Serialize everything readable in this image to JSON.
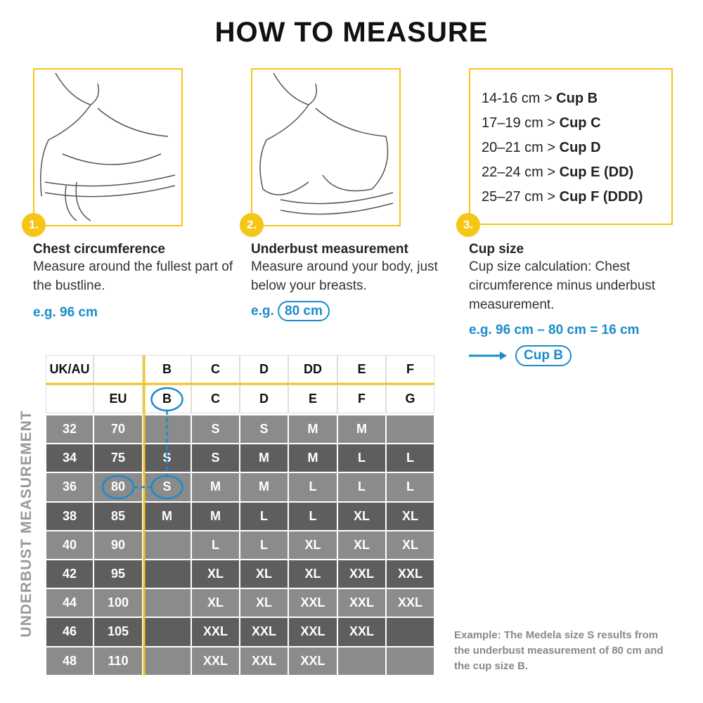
{
  "title": "HOW TO MEASURE",
  "steps": [
    {
      "number": "1.",
      "title": "Chest circumference",
      "description": "Measure around the fullest part of the bustline.",
      "example": "e.g. 96 cm"
    },
    {
      "number": "2.",
      "title": "Underbust measurement",
      "description": "Measure around your body, just below your breasts.",
      "example_prefix": "e.g.",
      "example_value": "80 cm"
    },
    {
      "number": "3.",
      "title": "Cup size",
      "description": "Cup size calculation: Chest circumference minus underbust measurement.",
      "example": "e.g. 96 cm – 80 cm = 16 cm",
      "result": "Cup B"
    }
  ],
  "cup_list": [
    {
      "range": "14-16 cm >",
      "cup": "Cup B"
    },
    {
      "range": "17–19 cm >",
      "cup": "Cup C"
    },
    {
      "range": "20–21 cm >",
      "cup": "Cup D"
    },
    {
      "range": "22–24 cm >",
      "cup": "Cup E (DD)"
    },
    {
      "range": "25–27 cm >",
      "cup": "Cup F (DDD)"
    }
  ],
  "table": {
    "side_label": "UNDERBUST MEASUREMENT",
    "header_uk": [
      "UK/AU",
      null,
      "B",
      "C",
      "D",
      "DD",
      "E",
      "F"
    ],
    "header_eu": [
      null,
      "EU",
      "B",
      "C",
      "D",
      "E",
      "F",
      "G"
    ],
    "rows": [
      [
        32,
        70,
        null,
        "S",
        "S",
        "M",
        "M",
        null
      ],
      [
        34,
        75,
        "S",
        "S",
        "M",
        "M",
        "L",
        "L"
      ],
      [
        36,
        80,
        "S",
        "M",
        "M",
        "L",
        "L",
        "L"
      ],
      [
        38,
        85,
        "M",
        "M",
        "L",
        "L",
        "XL",
        "XL"
      ],
      [
        40,
        90,
        null,
        "L",
        "L",
        "XL",
        "XL",
        "XL"
      ],
      [
        42,
        95,
        null,
        "XL",
        "XL",
        "XL",
        "XXL",
        "XXL"
      ],
      [
        44,
        100,
        null,
        "XL",
        "XL",
        "XXL",
        "XXL",
        "XXL"
      ],
      [
        46,
        105,
        null,
        "XXL",
        "XXL",
        "XXL",
        "XXL",
        null
      ],
      [
        48,
        110,
        null,
        "XXL",
        "XXL",
        "XXL",
        null,
        null
      ]
    ]
  },
  "note": "Example: The Medela size S results from the underbust measurement of 80 cm and the cup size B."
}
